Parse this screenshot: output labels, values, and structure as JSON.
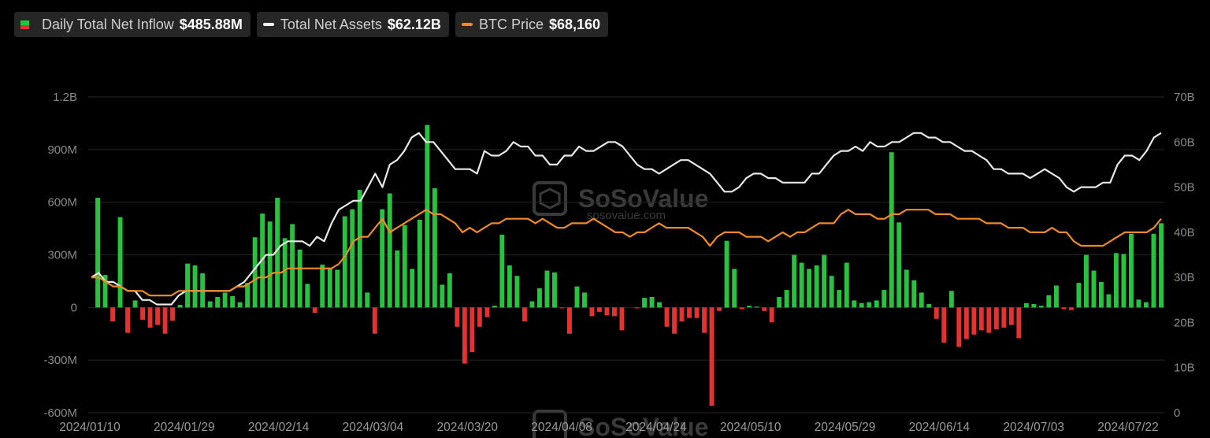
{
  "legend": {
    "inflow": {
      "label": "Daily Total Net Inflow",
      "value": "$485.88M"
    },
    "assets": {
      "label": "Total Net Assets",
      "value": "$62.12B"
    },
    "btc": {
      "label": "BTC Price",
      "value": "$68,160"
    }
  },
  "watermark": {
    "brand": "SoSoValue",
    "url": "sosovalue.com"
  },
  "colors": {
    "positive": "#27c23e",
    "negative": "#e5312f",
    "assets_line": "#e8e8e8",
    "btc_line": "#f08a24",
    "grid": "#262626"
  },
  "chart_data": {
    "type": "bar",
    "x_ticks": [
      "2024/01/10",
      "2024/01/29",
      "2024/02/14",
      "2024/03/04",
      "2024/03/20",
      "2024/04/08",
      "2024/04/24",
      "2024/05/10",
      "2024/05/29",
      "2024/06/14",
      "2024/07/03",
      "2024/07/22"
    ],
    "y_left": {
      "ticks": [
        "1.2B",
        "900M",
        "600M",
        "300M",
        "0",
        "-300M",
        "-600M"
      ],
      "ylim": [
        -600,
        1200
      ],
      "unit": "M"
    },
    "y_right": {
      "ticks": [
        "70B",
        "60B",
        "50B",
        "40B",
        "30B",
        "20B",
        "10B",
        "0"
      ],
      "ylim": [
        0,
        70
      ],
      "unit": "B"
    },
    "grid": true,
    "legend_position": "top-left",
    "series": [
      {
        "name": "Daily Total Net Inflow",
        "axis": "left",
        "kind": "bar",
        "values": [
          625,
          185,
          -80,
          515,
          -145,
          40,
          -70,
          -115,
          -100,
          -150,
          -75,
          15,
          250,
          240,
          195,
          35,
          60,
          85,
          65,
          30,
          140,
          400,
          535,
          490,
          625,
          395,
          475,
          330,
          135,
          -30,
          245,
          225,
          215,
          520,
          560,
          670,
          85,
          -150,
          560,
          650,
          325,
          470,
          220,
          500,
          1040,
          680,
          130,
          195,
          -110,
          -320,
          -255,
          -110,
          -55,
          10,
          415,
          240,
          180,
          -80,
          35,
          110,
          210,
          200,
          -5,
          -150,
          120,
          85,
          -50,
          -25,
          -45,
          -50,
          -130,
          0,
          -5,
          55,
          60,
          30,
          -110,
          -150,
          -80,
          -60,
          -60,
          -145,
          -560,
          -20,
          380,
          220,
          -10,
          10,
          5,
          -20,
          -85,
          60,
          100,
          300,
          255,
          220,
          240,
          300,
          180,
          100,
          255,
          40,
          25,
          30,
          40,
          100,
          885,
          485,
          215,
          155,
          85,
          20,
          -65,
          -200,
          95,
          -225,
          -180,
          -155,
          -130,
          -145,
          -125,
          -115,
          -100,
          -175,
          25,
          20,
          10,
          70,
          125,
          -10,
          -15,
          140,
          300,
          210,
          145,
          75,
          310,
          305,
          420,
          45,
          30,
          420,
          480
        ]
      },
      {
        "name": "Total Net Assets",
        "axis": "right",
        "kind": "line",
        "values": [
          30,
          31,
          29,
          29,
          28,
          27,
          27,
          25,
          25,
          24,
          24,
          24,
          26,
          27,
          27,
          27,
          27,
          27,
          27,
          27,
          28,
          29,
          31,
          33,
          35,
          35,
          37,
          38,
          38,
          38,
          37,
          39,
          38,
          42,
          45,
          46,
          47,
          47,
          50,
          53,
          50,
          55,
          56,
          58,
          61,
          62,
          60,
          60,
          58,
          56,
          54,
          54,
          54,
          53,
          58,
          57,
          57,
          58,
          60,
          59,
          59,
          57,
          57,
          55,
          55,
          57,
          57,
          59,
          58,
          58,
          59,
          60,
          60,
          59,
          57,
          55,
          54,
          54,
          53,
          54,
          55,
          56,
          56,
          55,
          54,
          53,
          51,
          49,
          49,
          50,
          52,
          53,
          53,
          52,
          52,
          51,
          51,
          51,
          51,
          53,
          53,
          55,
          57,
          58,
          58,
          59,
          58,
          60,
          59,
          59,
          60,
          60,
          61,
          62,
          62,
          61,
          61,
          60,
          60,
          59,
          58,
          58,
          57,
          56,
          54,
          54,
          53,
          53,
          53,
          52,
          53,
          54,
          53,
          52,
          50,
          49,
          50,
          50,
          50,
          51,
          51,
          55,
          57,
          57,
          56,
          58,
          61,
          62
        ]
      },
      {
        "name": "BTC Price",
        "axis": "right",
        "kind": "line",
        "values": [
          30,
          30,
          29,
          28,
          28,
          27,
          27,
          27,
          26,
          26,
          26,
          26,
          27,
          27,
          27,
          27,
          27,
          27,
          27,
          27,
          28,
          28,
          29,
          30,
          30,
          31,
          31,
          32,
          32,
          32,
          32,
          32,
          32,
          32,
          33,
          35,
          38,
          39,
          39,
          41,
          43,
          40,
          41,
          42,
          43,
          44,
          45,
          44,
          44,
          43,
          42,
          40,
          41,
          40,
          41,
          42,
          42,
          43,
          43,
          43,
          43,
          42,
          43,
          42,
          41,
          41,
          42,
          42,
          42,
          43,
          42,
          41,
          40,
          40,
          39,
          40,
          40,
          41,
          42,
          41,
          41,
          41,
          41,
          40,
          39,
          37,
          39,
          40,
          40,
          40,
          39,
          39,
          39,
          38,
          39,
          40,
          39,
          40,
          40,
          41,
          42,
          42,
          42,
          44,
          45,
          44,
          44,
          44,
          43,
          43,
          44,
          44,
          45,
          45,
          45,
          45,
          44,
          44,
          44,
          43,
          43,
          43,
          43,
          42,
          42,
          42,
          41,
          41,
          41,
          40,
          40,
          40,
          41,
          40,
          40,
          38,
          37,
          37,
          37,
          37,
          38,
          39,
          40,
          40,
          40,
          40,
          41,
          43
        ]
      }
    ]
  }
}
